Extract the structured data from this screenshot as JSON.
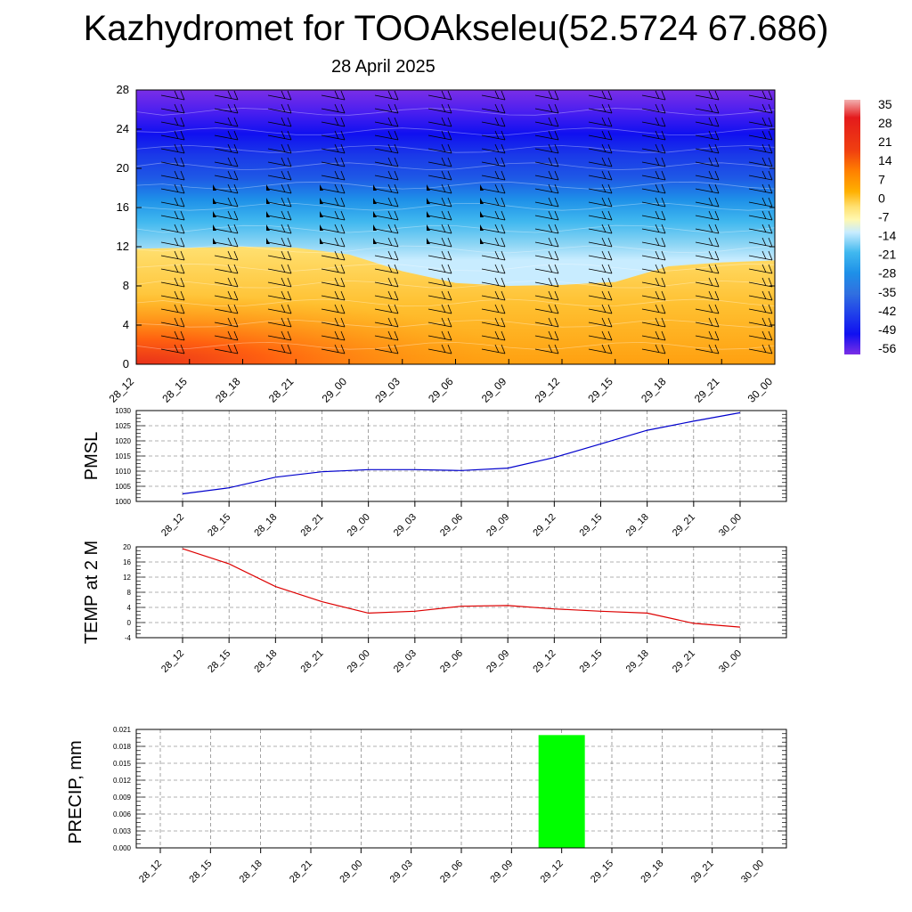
{
  "title": "Kazhydromet for TOOAkseleu(52.5724 67.686)",
  "subtitle": "28 April 2025",
  "time_labels": [
    "28_12",
    "28_15",
    "28_18",
    "28_21",
    "29_00",
    "29_03",
    "29_06",
    "29_09",
    "29_12",
    "29_15",
    "29_18",
    "29_21",
    "30_00"
  ],
  "chart_data": [
    {
      "type": "heatmap",
      "title": "",
      "ylabel": "",
      "yticks": [
        0,
        4,
        8,
        12,
        16,
        20,
        24,
        28
      ],
      "ylim": [
        0,
        28
      ],
      "x": [
        "28_12",
        "28_15",
        "28_18",
        "28_21",
        "29_00",
        "29_03",
        "29_06",
        "29_09",
        "29_12",
        "29_15",
        "29_18",
        "29_21",
        "30_00"
      ],
      "freezing_level_boundary": [
        11.8,
        11.9,
        12.0,
        11.9,
        11.2,
        9.5,
        8.3,
        8.0,
        8.1,
        8.4,
        10.0,
        10.4,
        10.6
      ],
      "colorbar": {
        "labels": [
          "35",
          "28",
          "21",
          "14",
          "7",
          "0",
          "-7",
          "-14",
          "-21",
          "-28",
          "-35",
          "-42",
          "-49",
          "-56"
        ],
        "colors": [
          "#f2a0a0",
          "#e41a1c",
          "#f04010",
          "#ff8000",
          "#ffb000",
          "#ffe070",
          "#fff8b0",
          "#c8ecff",
          "#40b8ef",
          "#1e90e8",
          "#3070e0",
          "#2040ea",
          "#1010f0",
          "#7a2ee6"
        ]
      },
      "wind_barbs": true
    },
    {
      "type": "line",
      "ylabel": "PMSL",
      "ylim": [
        1000,
        1030
      ],
      "yticks": [
        1000,
        1005,
        1010,
        1015,
        1020,
        1025,
        1030
      ],
      "x": [
        "28_12",
        "28_15",
        "28_18",
        "28_21",
        "29_00",
        "29_03",
        "29_06",
        "29_09",
        "29_12",
        "29_15",
        "29_18",
        "29_21",
        "30_00"
      ],
      "series": [
        {
          "values": [
            1002.5,
            1004.5,
            1008.0,
            1009.8,
            1010.5,
            1010.5,
            1010.2,
            1011.0,
            1014.5,
            1019.0,
            1023.5,
            1026.5,
            1029.3
          ]
        }
      ],
      "color": "#0000cc",
      "grid": true
    },
    {
      "type": "line",
      "ylabel": "TEMP at 2 M",
      "ylim": [
        -4,
        20
      ],
      "yticks": [
        -4,
        0,
        4,
        8,
        12,
        16,
        20
      ],
      "x": [
        "28_12",
        "28_15",
        "28_18",
        "28_21",
        "29_00",
        "29_03",
        "29_06",
        "29_09",
        "29_12",
        "29_15",
        "29_18",
        "29_21",
        "30_00"
      ],
      "series": [
        {
          "values": [
            19.5,
            15.5,
            9.5,
            5.5,
            2.5,
            3.0,
            4.3,
            4.5,
            3.6,
            3.0,
            2.5,
            -0.2,
            -1.2
          ]
        }
      ],
      "color": "#dd0000",
      "grid": true
    },
    {
      "type": "bar",
      "ylabel": "PRECIP, mm",
      "ylim": [
        0,
        0.021
      ],
      "yticks": [
        "0.000",
        "0.003",
        "0.006",
        "0.009",
        "0.012",
        "0.015",
        "0.018",
        "0.021"
      ],
      "categories": [
        "28_12",
        "28_15",
        "28_18",
        "28_21",
        "29_00",
        "29_03",
        "29_06",
        "29_09",
        "29_12",
        "29_15",
        "29_18",
        "29_21",
        "30_00"
      ],
      "values": [
        0,
        0,
        0,
        0,
        0,
        0,
        0,
        0,
        0.02,
        0,
        0,
        0,
        0
      ],
      "color": "#00ff00",
      "grid": true
    }
  ]
}
